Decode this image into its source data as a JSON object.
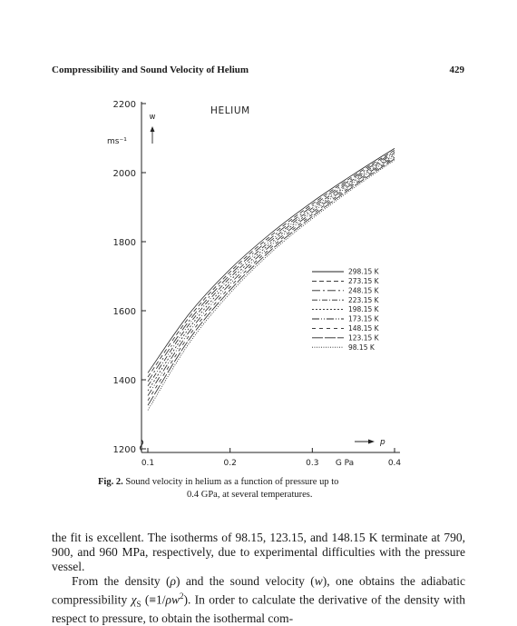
{
  "running_head": {
    "title": "Compressibility and Sound Velocity of Helium",
    "page_number": "429"
  },
  "chart_data": {
    "type": "line",
    "title": "HELIUM",
    "ylabel_symbol": "w",
    "ylabel_unit": "ms⁻¹",
    "xlabel_symbol": "p",
    "xlabel_unit": "G Pa",
    "xlim": [
      0.1,
      0.4
    ],
    "ylim": [
      1200,
      2200
    ],
    "x_ticks": [
      {
        "value": 0.1,
        "label": "0.1"
      },
      {
        "value": 0.2,
        "label": "0.2"
      },
      {
        "value": 0.3,
        "label": "0.3"
      },
      {
        "value": 0.4,
        "label": "0.4"
      }
    ],
    "y_ticks": [
      {
        "value": 1200,
        "label": "1200"
      },
      {
        "value": 1400,
        "label": "1400"
      },
      {
        "value": 1600,
        "label": "1600"
      },
      {
        "value": 1800,
        "label": "1800"
      },
      {
        "value": 2000,
        "label": "2000"
      },
      {
        "value": 2200,
        "label": "2200"
      }
    ],
    "legend_position": "right",
    "series": [
      {
        "name": "298.15 K",
        "dash": "",
        "x": [
          0.1,
          0.15,
          0.2,
          0.25,
          0.3,
          0.35,
          0.4
        ],
        "y": [
          1420,
          1590,
          1720,
          1825,
          1915,
          1995,
          2070
        ]
      },
      {
        "name": "273.15 K",
        "dash": "5,3",
        "x": [
          0.1,
          0.15,
          0.2,
          0.25,
          0.3,
          0.35,
          0.4
        ],
        "y": [
          1408,
          1580,
          1712,
          1818,
          1909,
          1990,
          2065
        ]
      },
      {
        "name": "248.15 K",
        "dash": "9,3,2,3",
        "x": [
          0.1,
          0.15,
          0.2,
          0.25,
          0.3,
          0.35,
          0.4
        ],
        "y": [
          1395,
          1570,
          1704,
          1811,
          1903,
          1985,
          2061
        ]
      },
      {
        "name": "223.15 K",
        "dash": "6,2,1,2",
        "x": [
          0.1,
          0.15,
          0.2,
          0.25,
          0.3,
          0.35,
          0.4
        ],
        "y": [
          1382,
          1560,
          1696,
          1804,
          1897,
          1980,
          2057
        ]
      },
      {
        "name": "198.15 K",
        "dash": "2,2",
        "x": [
          0.1,
          0.15,
          0.2,
          0.25,
          0.3,
          0.35,
          0.4
        ],
        "y": [
          1368,
          1549,
          1687,
          1797,
          1891,
          1975,
          2052
        ]
      },
      {
        "name": "173.15 K",
        "dash": "8,2,1,2,1,2",
        "x": [
          0.1,
          0.15,
          0.2,
          0.25,
          0.3,
          0.35,
          0.4
        ],
        "y": [
          1354,
          1538,
          1678,
          1790,
          1885,
          1970,
          2048
        ]
      },
      {
        "name": "148.15 K",
        "dash": "4,4",
        "x": [
          0.1,
          0.15,
          0.2,
          0.25,
          0.3,
          0.35,
          0.4
        ],
        "y": [
          1340,
          1527,
          1669,
          1783,
          1879,
          1965,
          2044
        ]
      },
      {
        "name": "123.15 K",
        "dash": "12,2",
        "x": [
          0.1,
          0.15,
          0.2,
          0.25,
          0.3,
          0.35,
          0.4
        ],
        "y": [
          1326,
          1516,
          1660,
          1776,
          1873,
          1960,
          2040
        ]
      },
      {
        "name": "98.15 K",
        "dash": "1,1.5",
        "x": [
          0.1,
          0.15,
          0.2,
          0.25,
          0.3,
          0.35,
          0.4
        ],
        "y": [
          1312,
          1505,
          1651,
          1769,
          1867,
          1955,
          2036
        ]
      }
    ]
  },
  "caption": {
    "label": "Fig. 2.",
    "line1": "Sound velocity in helium as a function of pressure up to",
    "line2": "0.4 GPa, at several temperatures."
  },
  "body": {
    "para1": "the fit is excellent. The isotherms of 98.15, 123.15, and 148.15 K terminate at 790, 900, and 960 MPa, respectively, due to experimental difficulties with the pressure vessel.",
    "para2_start": "From the density (",
    "rho": "ρ",
    "para2_mid1": ") and the sound velocity (",
    "w": "w",
    "para2_mid2": "), one obtains the adiabatic compressibility ",
    "chi": "χ",
    "chi_sub": "S",
    "para2_def_open": " (≡1/",
    "rho2": "ρ",
    "w2": "w",
    "sup2": "2",
    "para2_def_close": "). In order to calculate the derivative of the density with respect to pressure, to obtain the isothermal com-"
  }
}
